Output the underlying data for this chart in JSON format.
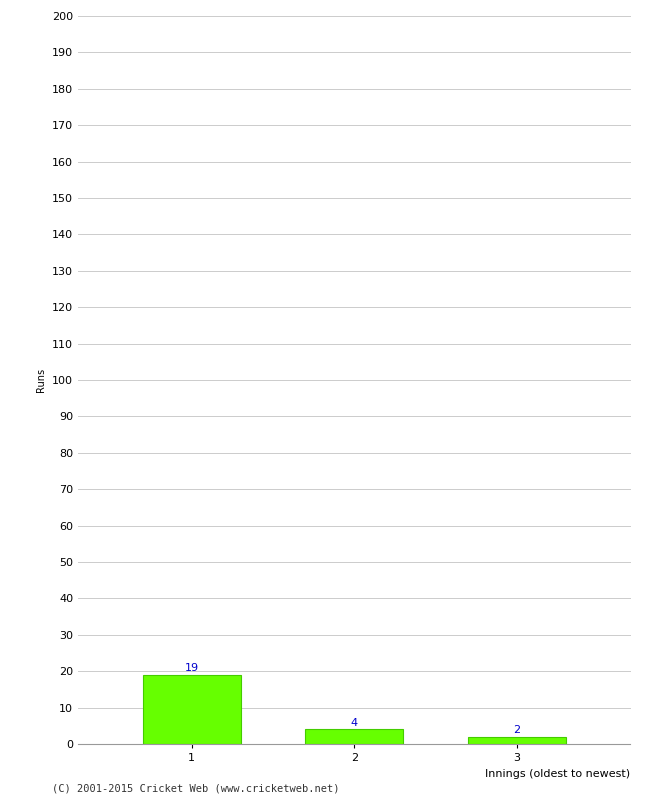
{
  "categories": [
    "1",
    "2",
    "3"
  ],
  "values": [
    19,
    4,
    2
  ],
  "bar_color": "#66ff00",
  "bar_edge_color": "#44cc00",
  "xlabel": "Innings (oldest to newest)",
  "ylabel": "Runs",
  "ylim": [
    0,
    200
  ],
  "yticks": [
    0,
    10,
    20,
    30,
    40,
    50,
    60,
    70,
    80,
    90,
    100,
    110,
    120,
    130,
    140,
    150,
    160,
    170,
    180,
    190,
    200
  ],
  "label_color": "#0000cc",
  "label_fontsize": 8,
  "xlabel_fontsize": 8,
  "ylabel_fontsize": 7,
  "tick_fontsize": 8,
  "footer_text": "(C) 2001-2015 Cricket Web (www.cricketweb.net)",
  "footer_fontsize": 7.5,
  "background_color": "#ffffff",
  "grid_color": "#cccccc"
}
